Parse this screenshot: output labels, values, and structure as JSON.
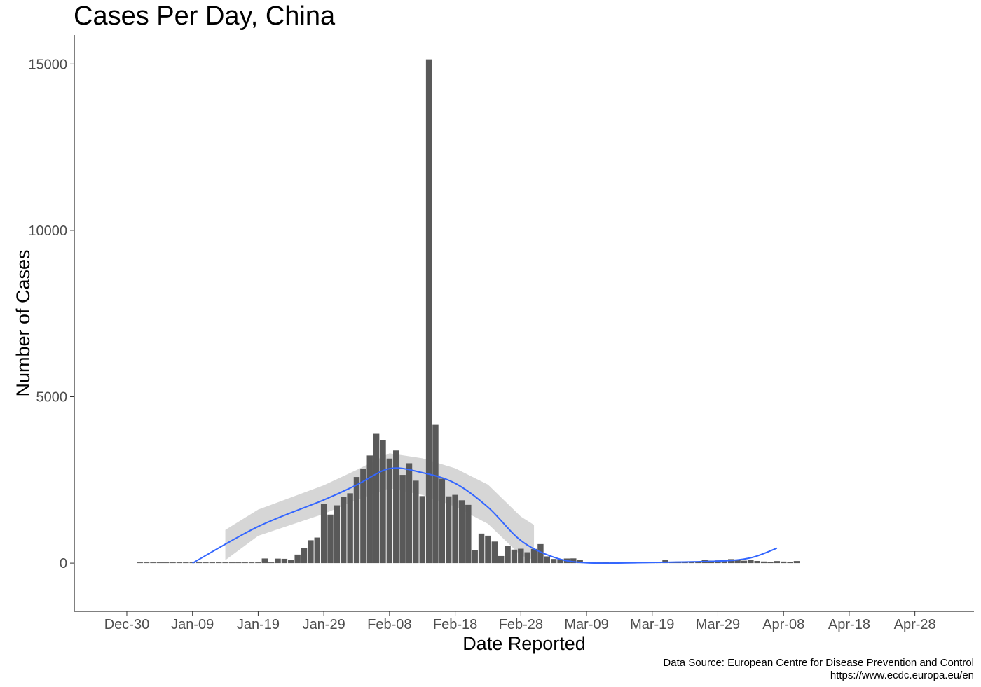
{
  "chart_data": {
    "type": "bar",
    "title": "Cases Per Day, China",
    "xlabel": "Date Reported",
    "ylabel": "Number of Cases",
    "caption_lines": [
      "Data Source: European Centre for Disease Prevention and Control",
      "https://www.ecdc.europa.eu/en"
    ],
    "x_start_date": "2020-01-01",
    "x_range": [
      "2019-12-22",
      "2020-05-07"
    ],
    "ylim": [
      -1450,
      15870
    ],
    "x_ticks": [
      "Dec-30",
      "Jan-09",
      "Jan-19",
      "Jan-29",
      "Feb-08",
      "Feb-18",
      "Feb-28",
      "Mar-09",
      "Mar-19",
      "Mar-29",
      "Apr-08",
      "Apr-18",
      "Apr-28"
    ],
    "x_tick_dates": [
      "2019-12-30",
      "2020-01-09",
      "2020-01-19",
      "2020-01-29",
      "2020-02-08",
      "2020-02-18",
      "2020-02-28",
      "2020-03-09",
      "2020-03-19",
      "2020-03-29",
      "2020-04-08",
      "2020-04-18",
      "2020-04-28"
    ],
    "y_ticks": [
      0,
      5000,
      10000,
      15000
    ],
    "y_tick_labels": [
      "0",
      "5000",
      "10000",
      "15000"
    ],
    "grid": false,
    "bar_color": "#595959",
    "values": [
      0,
      0,
      0,
      0,
      0,
      0,
      0,
      0,
      0,
      0,
      0,
      0,
      0,
      0,
      0,
      0,
      0,
      0,
      0,
      140,
      17,
      136,
      130,
      99,
      257,
      444,
      688,
      769,
      1771,
      1459,
      1737,
      1981,
      2099,
      2589,
      2825,
      3235,
      3884,
      3697,
      3143,
      3385,
      2652,
      3002,
      2478,
      2015,
      15141,
      4156,
      2538,
      2007,
      2052,
      1890,
      1752,
      394,
      889,
      825,
      648,
      214,
      508,
      406,
      433,
      327,
      427,
      573,
      202,
      125,
      119,
      139,
      143,
      99,
      44,
      40,
      19,
      24,
      15,
      8,
      11,
      13,
      13,
      25,
      29,
      42,
      102,
      44,
      46,
      41,
      39,
      46,
      99,
      76,
      82,
      94,
      120,
      92,
      72,
      96,
      65,
      49,
      37,
      62,
      47,
      39,
      63
    ],
    "smooth_fit": {
      "color": "#3366ff",
      "band_color": "#999999",
      "dates": [
        "2020-01-09",
        "2020-01-19",
        "2020-01-29",
        "2020-02-03",
        "2020-02-08",
        "2020-02-13",
        "2020-02-18",
        "2020-02-23",
        "2020-02-28",
        "2020-03-04",
        "2020-03-09",
        "2020-03-19",
        "2020-03-29",
        "2020-04-03",
        "2020-04-07"
      ],
      "fit": [
        0,
        1100,
        1900,
        2350,
        2840,
        2720,
        2400,
        1680,
        680,
        180,
        10,
        20,
        60,
        160,
        450
      ],
      "band_start_date": "2020-01-14",
      "band_end_date": "2020-03-01",
      "band_dates": [
        "2020-01-14",
        "2020-01-19",
        "2020-01-29",
        "2020-02-03",
        "2020-02-08",
        "2020-02-13",
        "2020-02-18",
        "2020-02-23",
        "2020-02-28",
        "2020-03-01"
      ],
      "band_lower": [
        90,
        820,
        1480,
        1900,
        2250,
        2050,
        1700,
        1180,
        230,
        100
      ],
      "band_upper": [
        1000,
        1610,
        2340,
        2800,
        3300,
        3150,
        2850,
        2360,
        1400,
        1150
      ]
    }
  }
}
